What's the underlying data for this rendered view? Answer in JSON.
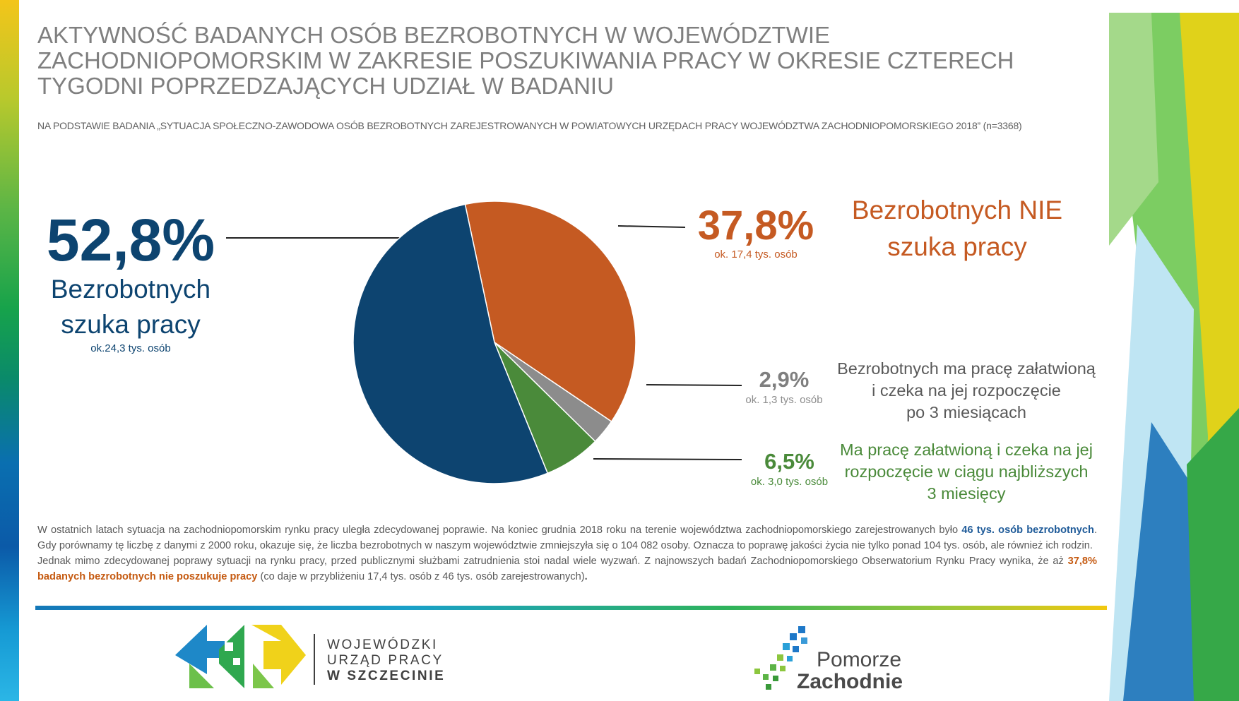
{
  "header": {
    "title": "AKTYWNOŚĆ BADANYCH OSÓB BEZROBOTNYCH W WOJEWÓDZTWIE ZACHODNIOPOMORSKIM W ZAKRESIE POSZUKIWANIA PRACY W OKRESIE CZTERECH TYGODNI POPRZEDZAJĄCYCH UDZIAŁ W BADANIU",
    "subtitle": "NA PODSTAWIE BADANIA „SYTUACJA SPOŁECZNO-ZAWODOWA OSÓB BEZROBOTNYCH ZAREJESTROWANYCH W POWIATOWYCH URZĘDACH PRACY WOJEWÓDZTWA ZACHODNIOPOMORSKIEGO 2018” (n=3368)"
  },
  "chart_data": {
    "type": "pie",
    "slices": [
      {
        "label_pct": "52,8%",
        "value": 52.8,
        "desc_line1": "Bezrobotnych",
        "desc_line2": "szuka pracy",
        "count": "ok.24,3 tys. osób",
        "color": "#0d4470"
      },
      {
        "label_pct": "37,8%",
        "value": 37.8,
        "desc_line1": "Bezrobotnych NIE",
        "desc_line2": "szuka pracy",
        "count": "ok. 17,4 tys. osób",
        "color": "#c55a22"
      },
      {
        "label_pct": "2,9%",
        "value": 2.9,
        "desc_line1": "Bezrobotnych ma pracę załatwioną",
        "desc_line2": "i czeka na jej rozpoczęcie",
        "desc_line3": "po 3 miesiącach",
        "count": "ok. 1,3 tys. osób",
        "color": "#8c8c8c"
      },
      {
        "label_pct": "6,5%",
        "value": 6.5,
        "desc_line1": "Ma pracę załatwioną i czeka na jej",
        "desc_line2": "rozpoczęcie w ciągu najbliższych",
        "desc_line3": "3 miesięcy",
        "count": "ok. 3,0 tys. osób",
        "color": "#4a8a3a"
      }
    ]
  },
  "body": {
    "p1_a": "W ostatnich latach sytuacja na zachodniopomorskim rynku pracy uległa zdecydowanej poprawie. Na koniec grudnia 2018 roku na terenie województwa zachodniopomorskiego zarejestrowanych było ",
    "p1_hl": "46 tys. osób bezrobotnych",
    "p1_b": ". Gdy porównamy tę liczbę z danymi z 2000 roku, okazuje się, że liczba bezrobotnych w naszym województwie zmniejszyła się o 104 082 osoby. Oznacza to poprawę jakości życia nie tylko ponad 104 tys. osób, ale również ich rodzin.",
    "p2_a": "Jednak mimo zdecydowanej poprawy sytuacji na rynku pracy, przed publicznymi służbami zatrudnienia stoi nadal wiele wyzwań. Z najnowszych badań Zachodniopomorskiego Obserwatorium Rynku Pracy wynika, że aż ",
    "p2_hl": "37,8% badanych bezrobotnych nie poszukuje pracy",
    "p2_b": " (co daje w przybliżeniu 17,4 tys. osób z 46 tys. osób  zarejestrowanych)",
    "p2_end": "."
  },
  "footer": {
    "logo1_line1": "WOJEWÓDZKI",
    "logo1_line2": "URZĄD PRACY",
    "logo1_line3": "W  SZCZECINIE",
    "logo2_line1": "Pomorze",
    "logo2_line2": "Zachodnie"
  }
}
